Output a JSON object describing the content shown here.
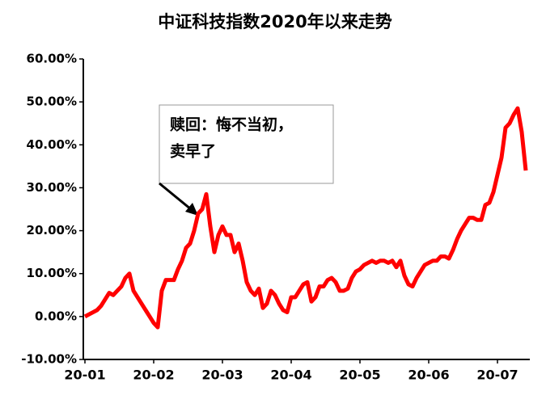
{
  "chart_data": {
    "type": "line",
    "title": "中证科技指数2020年以来走势",
    "annotation": [
      "赎回：悔不当初，",
      "卖早了"
    ],
    "categories": [
      "20-01",
      null,
      null,
      null,
      null,
      null,
      null,
      null,
      null,
      null,
      null,
      null,
      null,
      null,
      null,
      null,
      null,
      "20-02",
      null,
      null,
      null,
      null,
      null,
      null,
      null,
      null,
      null,
      null,
      null,
      null,
      null,
      null,
      null,
      null,
      "20-03",
      null,
      null,
      null,
      null,
      null,
      null,
      null,
      null,
      null,
      null,
      null,
      null,
      null,
      null,
      null,
      null,
      "20-04",
      null,
      null,
      null,
      null,
      null,
      null,
      null,
      null,
      null,
      null,
      null,
      null,
      null,
      null,
      null,
      null,
      "20-05",
      null,
      null,
      null,
      null,
      null,
      null,
      null,
      null,
      null,
      null,
      null,
      null,
      null,
      null,
      null,
      null,
      "20-06",
      null,
      null,
      null,
      null,
      null,
      null,
      null,
      null,
      null,
      null,
      null,
      null,
      null,
      null,
      null,
      null,
      "20-07",
      null,
      null,
      null,
      null,
      null,
      null,
      null
    ],
    "series": [
      {
        "color": "#ff0000",
        "values": [
          0,
          0.5,
          1,
          1.5,
          2.5,
          4,
          5.5,
          5,
          6,
          7,
          9,
          10,
          6,
          4.5,
          3,
          1.5,
          0,
          -1.5,
          -2.5,
          6,
          8.5,
          8.5,
          8.5,
          11,
          13,
          16,
          17,
          20,
          24,
          25,
          28.5,
          21,
          15,
          19,
          21,
          19,
          19,
          15,
          17,
          13,
          8,
          6,
          5,
          6.5,
          2,
          3,
          6,
          5,
          3,
          1.5,
          1,
          4.5,
          4.5,
          6,
          7.5,
          8,
          3.5,
          4.5,
          7,
          7,
          8.5,
          9,
          8,
          6,
          6,
          6.5,
          9,
          10.5,
          11,
          12,
          12.5,
          13,
          12.5,
          13,
          13,
          12.5,
          13,
          11.5,
          13,
          9.5,
          7.5,
          7,
          9,
          10.5,
          12,
          12.5,
          13,
          13,
          14,
          14,
          13.5,
          15.5,
          18,
          20,
          21.5,
          23,
          23,
          22.5,
          22.5,
          26,
          26.5,
          29,
          33,
          37,
          44,
          45,
          47,
          48.5,
          43,
          34
        ]
      }
    ],
    "ylim": [
      -10,
      60
    ],
    "yticks": [
      {
        "value": -10,
        "label": "-10.00%"
      },
      {
        "value": 0,
        "label": "0.00%"
      },
      {
        "value": 10,
        "label": "10.00%"
      },
      {
        "value": 20,
        "label": "20.00%"
      },
      {
        "value": 30,
        "label": "30.00%"
      },
      {
        "value": 40,
        "label": "40.00%"
      },
      {
        "value": 50,
        "label": "50.00%"
      },
      {
        "value": 60,
        "label": "60.00%"
      }
    ]
  }
}
